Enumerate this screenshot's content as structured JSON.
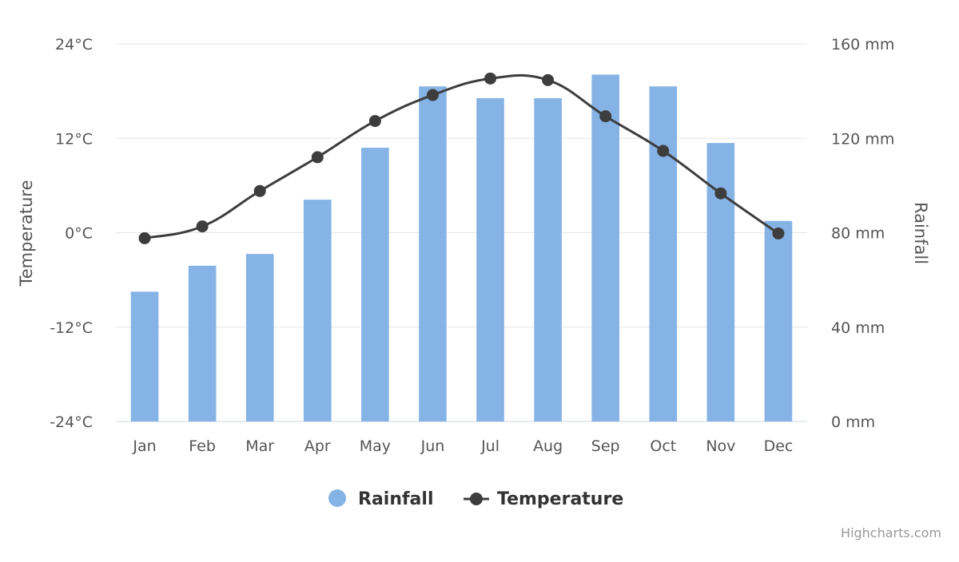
{
  "chart_data": {
    "type": "bar",
    "categories": [
      "Jan",
      "Feb",
      "Mar",
      "Apr",
      "May",
      "Jun",
      "Jul",
      "Aug",
      "Sep",
      "Oct",
      "Nov",
      "Dec"
    ],
    "series": [
      {
        "name": "Rainfall",
        "type": "bar",
        "axis": "right",
        "color": "#86B3E6",
        "values": [
          55,
          66,
          71,
          94,
          116,
          142,
          137,
          137,
          147,
          142,
          118,
          85
        ]
      },
      {
        "name": "Temperature",
        "type": "line",
        "axis": "left",
        "color": "#3D3D3D",
        "values": [
          -0.7,
          0.8,
          5.3,
          9.6,
          14.2,
          17.5,
          19.6,
          19.4,
          14.8,
          10.4,
          5.0,
          -0.1
        ]
      }
    ],
    "yAxisLeft": {
      "title": "Temperature",
      "ticks": [
        "24°C",
        "12°C",
        "0°C",
        "-12°C",
        "-24°C"
      ],
      "range": [
        -24,
        24
      ]
    },
    "yAxisRight": {
      "title": "Rainfall",
      "ticks": [
        "160 mm",
        "120 mm",
        "80 mm",
        "40 mm",
        "0 mm"
      ],
      "range": [
        0,
        160
      ]
    },
    "grid": true,
    "legend_position": "bottom-center"
  },
  "credits": "Highcharts.com"
}
